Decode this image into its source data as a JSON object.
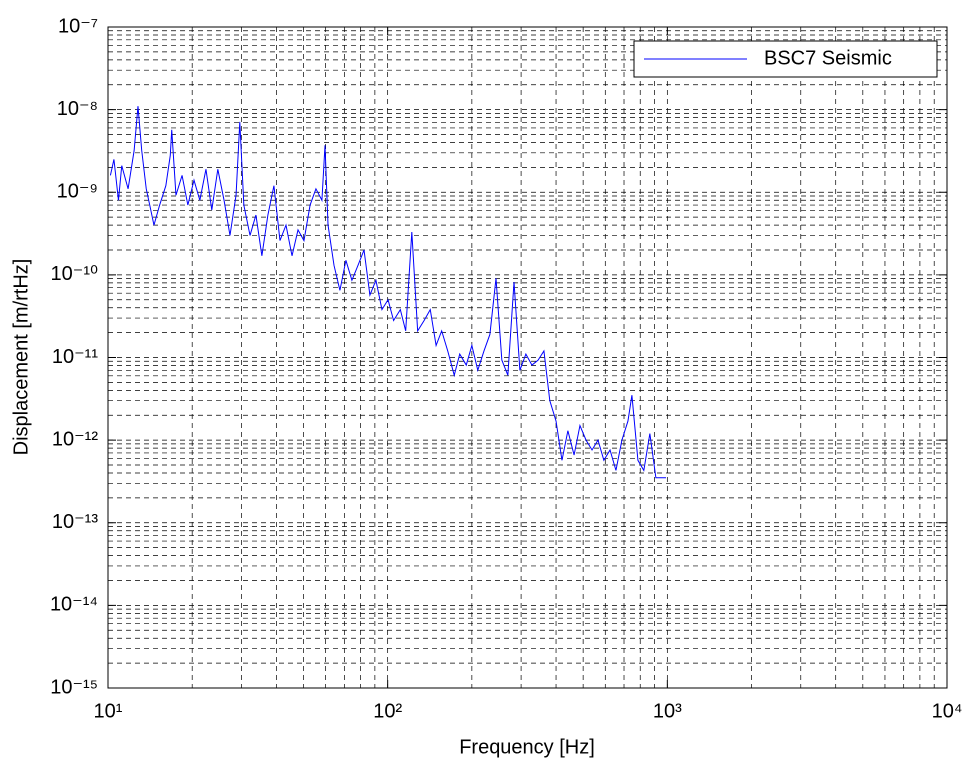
{
  "chart_data": {
    "type": "line",
    "xlabel": "Frequency [Hz]",
    "ylabel": "Displacement [m/rtHz]",
    "xscale": "log",
    "yscale": "log",
    "grid": true,
    "legend": "northeast",
    "xlim": [
      10,
      10000
    ],
    "ylim": [
      1e-15,
      1e-07
    ],
    "xticks": [
      {
        "value": 10,
        "label": "10¹"
      },
      {
        "value": 100,
        "label": "10²"
      },
      {
        "value": 1000,
        "label": "10³"
      },
      {
        "value": 10000,
        "label": "10⁴"
      }
    ],
    "yticks": [
      {
        "value": 1e-15,
        "label": "10⁻¹⁵"
      },
      {
        "value": 1e-14,
        "label": "10⁻¹⁴"
      },
      {
        "value": 1e-13,
        "label": "10⁻¹³"
      },
      {
        "value": 1e-12,
        "label": "10⁻¹²"
      },
      {
        "value": 1e-11,
        "label": "10⁻¹¹"
      },
      {
        "value": 1e-10,
        "label": "10⁻¹⁰"
      },
      {
        "value": 1e-09,
        "label": "10⁻⁹"
      },
      {
        "value": 1e-08,
        "label": "10⁻⁸"
      },
      {
        "value": 1e-07,
        "label": "10⁻⁷"
      }
    ],
    "xminorticks": [
      20,
      30,
      40,
      50,
      60,
      70,
      80,
      90,
      200,
      300,
      400,
      500,
      600,
      700,
      800,
      900,
      2000,
      3000,
      4000,
      5000,
      6000,
      7000,
      8000,
      9000
    ],
    "yminorticks": [
      2e-15,
      3e-15,
      4e-15,
      5e-15,
      6e-15,
      7e-15,
      8e-15,
      9e-15,
      2e-14,
      3e-14,
      4e-14,
      5e-14,
      6e-14,
      7e-14,
      8e-14,
      9e-14,
      2e-13,
      3e-13,
      4e-13,
      5e-13,
      6e-13,
      7e-13,
      8e-13,
      9e-13,
      2e-12,
      3e-12,
      4e-12,
      5e-12,
      6e-12,
      7e-12,
      8e-12,
      9e-12,
      2e-11,
      3e-11,
      4e-11,
      5e-11,
      6e-11,
      7e-11,
      8e-11,
      9e-11,
      2e-10,
      3e-10,
      4e-10,
      5e-10,
      6e-10,
      7e-10,
      8e-10,
      9e-10,
      2e-09,
      3e-09,
      4e-09,
      5e-09,
      6e-09,
      7e-09,
      8e-09,
      9e-09,
      2e-08,
      3e-08,
      4e-08,
      5e-08,
      6e-08,
      7e-08,
      8e-08,
      9e-08
    ],
    "x": [
      10.2,
      10.5,
      10.9,
      11.2,
      11.8,
      12.4,
      12.8,
      13.2,
      13.7,
      14.1,
      14.6,
      15.3,
      16.1,
      16.7,
      16.9,
      17.5,
      18.4,
      19.3,
      20.3,
      21.3,
      22.4,
      23.5,
      24.7,
      26.0,
      27.3,
      28.7,
      29.6,
      30.6,
      32.2,
      33.8,
      35.5,
      37.3,
      39.2,
      41.2,
      43.3,
      45.5,
      47.8,
      50.2,
      52.8,
      55.4,
      58.2,
      59.7,
      61.2,
      64.3,
      67.5,
      70.9,
      74.5,
      78.3,
      82.3,
      86.4,
      90.8,
      95.4,
      100.3,
      105,
      111,
      116,
      122,
      128,
      135,
      142,
      149,
      156,
      164,
      173,
      181,
      191,
      200,
      210,
      221,
      232,
      244,
      256,
      269,
      283,
      297,
      312,
      328,
      345,
      362,
      380,
      400,
      420,
      441,
      464,
      487,
      512,
      538,
      565,
      593,
      624,
      655,
      688,
      723,
      747,
      785,
      824,
      866,
      910,
      957,
      989
    ],
    "series": [
      {
        "name": "BSC7 Seismic",
        "color": "#0000ff",
        "values": [
          1.6e-09,
          2.5e-09,
          8e-10,
          2.1e-09,
          1.1e-09,
          3.2e-09,
          1.1e-08,
          3.2e-09,
          1.1e-09,
          7e-10,
          4e-10,
          7e-10,
          1.2e-09,
          2.8e-09,
          5.7e-09,
          9.2e-10,
          1.6e-09,
          7e-10,
          1.4e-09,
          8e-10,
          1.9e-09,
          6.1e-10,
          1.9e-09,
          8e-10,
          3e-10,
          9.2e-10,
          7.1e-09,
          7e-10,
          3e-10,
          5.3e-10,
          1.7e-10,
          5.3e-10,
          1.2e-09,
          2.6e-10,
          4e-10,
          1.7e-10,
          3.5e-10,
          2.6e-10,
          7e-10,
          1.1e-09,
          8e-10,
          3.7e-09,
          4e-10,
          1.3e-10,
          6.5e-11,
          1.5e-10,
          8.6e-11,
          1.3e-10,
          2e-10,
          5.7e-11,
          8.6e-11,
          3.8e-11,
          5e-11,
          2.8e-11,
          3.8e-11,
          2.1e-11,
          3.3e-10,
          2.1e-11,
          2.8e-11,
          3.8e-11,
          1.4e-11,
          2.1e-11,
          1.2e-11,
          6.1e-12,
          1.1e-11,
          8.1e-12,
          1.4e-11,
          7e-12,
          1.2e-11,
          1.9e-11,
          9.1e-11,
          9.3e-12,
          6.1e-12,
          8.2e-11,
          7e-12,
          1.1e-11,
          8.1e-12,
          9.3e-12,
          1.2e-11,
          3e-12,
          1.7e-12,
          5.7e-13,
          1.3e-12,
          6.6e-13,
          1.5e-12,
          1e-12,
          7.6e-13,
          1e-12,
          5.7e-13,
          7.6e-13,
          4.3e-13,
          1e-12,
          1.7e-12,
          3.5e-12,
          5.7e-13,
          4.3e-13,
          1.2e-12,
          3.5e-13,
          3.5e-13,
          3.5e-13
        ]
      }
    ]
  }
}
